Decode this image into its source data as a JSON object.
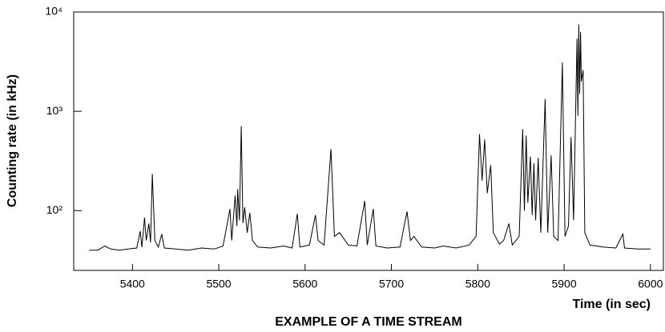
{
  "chart_data": {
    "type": "line",
    "title": "EXAMPLE OF A TIME STREAM",
    "x_label": "Time (in sec)",
    "y_label": "Counting rate (in kHz)",
    "log_y": true,
    "color": "#000000",
    "xlim": [
      5332,
      6015
    ],
    "xticks": [
      5400,
      5500,
      5600,
      5700,
      5800,
      5900,
      6000
    ],
    "ylim": [
      25,
      10000
    ],
    "yticks": [
      {
        "value": 100,
        "label": "10²"
      },
      {
        "value": 1000,
        "label": "10³"
      },
      {
        "value": 10000,
        "label": "10⁴"
      }
    ],
    "x": [
      5350,
      5360,
      5368,
      5375,
      5385,
      5395,
      5405,
      5409,
      5411,
      5414,
      5416,
      5419,
      5421,
      5423,
      5426,
      5430,
      5434,
      5437,
      5450,
      5465,
      5480,
      5495,
      5505,
      5513,
      5515,
      5519,
      5521,
      5522,
      5524,
      5526,
      5528,
      5530,
      5533,
      5536,
      5539,
      5545,
      5560,
      5575,
      5585,
      5591,
      5594,
      5605,
      5612,
      5615,
      5622,
      5630,
      5634,
      5640,
      5650,
      5660,
      5669,
      5672,
      5679,
      5682,
      5695,
      5710,
      5718,
      5722,
      5726,
      5735,
      5750,
      5760,
      5775,
      5790,
      5798,
      5802,
      5805,
      5808,
      5811,
      5815,
      5818,
      5825,
      5830,
      5836,
      5840,
      5848,
      5852,
      5854,
      5856,
      5858,
      5861,
      5863,
      5865,
      5867,
      5870,
      5873,
      5878,
      5881,
      5885,
      5888,
      5893,
      5898,
      5901,
      5905,
      5908,
      5911,
      5915,
      5916,
      5917,
      5918,
      5919,
      5920,
      5922,
      5924,
      5930,
      5945,
      5960,
      5968,
      5970,
      5985,
      6000
    ],
    "values": [
      40,
      40,
      44,
      41,
      40,
      41,
      42,
      62,
      43,
      85,
      50,
      74,
      48,
      234,
      50,
      43,
      58,
      42,
      41,
      40,
      42,
      41,
      44,
      104,
      50,
      142,
      70,
      165,
      80,
      710,
      75,
      108,
      60,
      95,
      50,
      43,
      42,
      44,
      42,
      93,
      43,
      45,
      90,
      50,
      45,
      416,
      55,
      60,
      45,
      44,
      125,
      45,
      104,
      44,
      42,
      43,
      98,
      50,
      55,
      43,
      42,
      44,
      42,
      45,
      55,
      590,
      200,
      520,
      150,
      287,
      60,
      46,
      50,
      74,
      45,
      55,
      660,
      100,
      570,
      120,
      350,
      90,
      300,
      80,
      340,
      60,
      1330,
      60,
      360,
      55,
      50,
      3100,
      55,
      70,
      550,
      80,
      5400,
      900,
      7500,
      1500,
      6300,
      2000,
      2600,
      60,
      45,
      43,
      42,
      58,
      42,
      41,
      41
    ]
  }
}
